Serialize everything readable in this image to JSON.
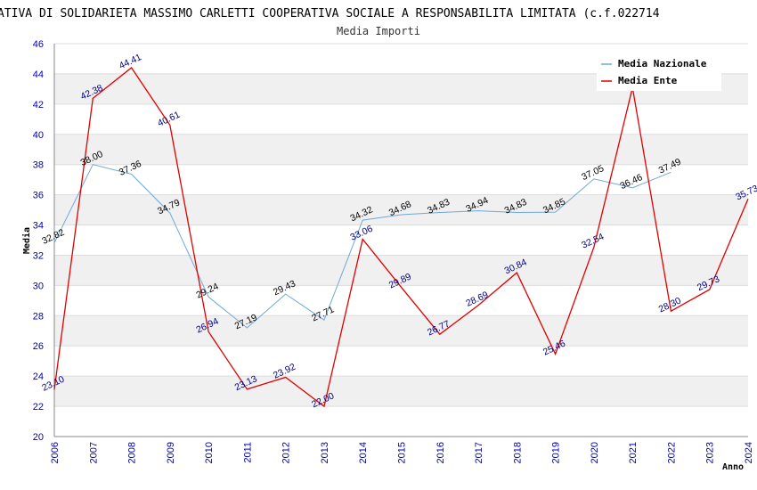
{
  "chart_data": {
    "type": "line",
    "title": "ATIVA DI SOLIDARIETA MASSIMO CARLETTI COOPERATIVA SOCIALE A RESPONSABILITA LIMITATA (c.f.022714",
    "subtitle": "Media Importi",
    "xlabel": "Anno",
    "ylabel": "Media",
    "ylim": [
      20,
      46
    ],
    "yticks": [
      20,
      22,
      24,
      26,
      28,
      30,
      32,
      34,
      36,
      38,
      40,
      42,
      44,
      46
    ],
    "categories": [
      "2006",
      "2007",
      "2008",
      "2009",
      "2010",
      "2011",
      "2012",
      "2013",
      "2014",
      "2015",
      "2016",
      "2017",
      "2018",
      "2019",
      "2020",
      "2021",
      "2022",
      "2023",
      "2024"
    ],
    "series": [
      {
        "name": "Media Nazionale",
        "color": "#6fa8dc",
        "values": [
          32.82,
          38.0,
          37.36,
          34.79,
          29.24,
          27.19,
          29.43,
          27.71,
          34.32,
          34.68,
          34.83,
          34.94,
          34.83,
          34.85,
          37.05,
          36.46,
          37.49,
          null,
          null
        ],
        "labels": [
          "32.82",
          "38.00",
          "37.36",
          "34.79",
          "29.24",
          "27.19",
          "29.43",
          "27.71",
          "34.32",
          "34.68",
          "34.83",
          "34.94",
          "34.83",
          "34.85",
          "37.05",
          "36.46",
          "37.49",
          null,
          null
        ]
      },
      {
        "name": "Media Ente",
        "color": "#e00000",
        "values": [
          23.1,
          42.38,
          44.41,
          40.61,
          26.94,
          23.13,
          23.92,
          22.0,
          33.06,
          29.89,
          26.77,
          28.69,
          30.84,
          25.46,
          32.54,
          43.1,
          28.3,
          29.73,
          35.73
        ],
        "labels": [
          "23.10",
          "42.38",
          "44.41",
          "40.61",
          "26.94",
          "23.13",
          "23.92",
          "22.00",
          "33.06",
          "29.89",
          "26.77",
          "28.69",
          "30.84",
          "25.46",
          "32.54",
          null,
          "28.30",
          "29.73",
          "35.73"
        ]
      }
    ],
    "grid": true,
    "legend": "top-right"
  }
}
